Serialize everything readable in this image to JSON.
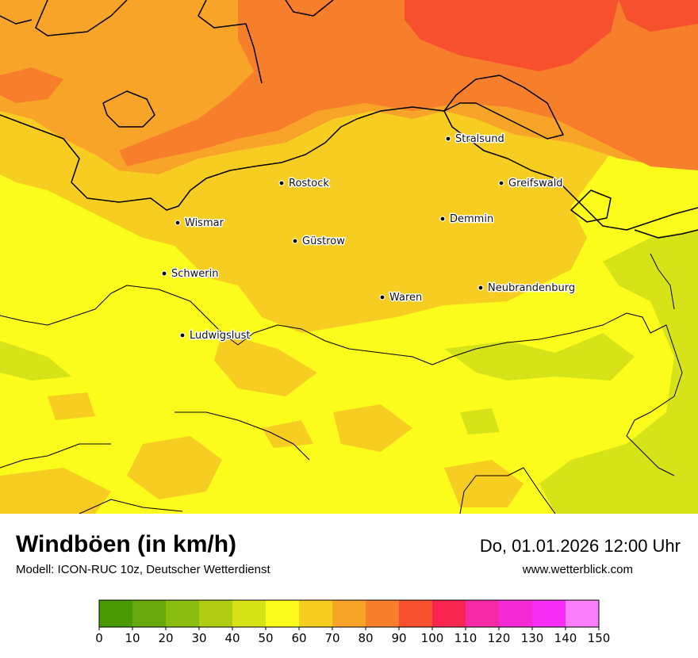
{
  "map": {
    "cities": [
      {
        "name": "Stralsund"
      },
      {
        "name": "Rostock"
      },
      {
        "name": "Greifswald"
      },
      {
        "name": "Wismar"
      },
      {
        "name": "Demmin"
      },
      {
        "name": "Güstrow"
      },
      {
        "name": "Schwerin"
      },
      {
        "name": "Neubrandenburg"
      },
      {
        "name": "Waren"
      },
      {
        "name": "Ludwigslust"
      }
    ]
  },
  "footer": {
    "title": "Windböen (in km/h)",
    "subtitle": "Modell: ICON-RUC 10z, Deutscher Wetterdienst",
    "datetime": "Do, 01.01.2026 12:00 Uhr",
    "website": "www.wetterblick.com"
  },
  "legend": {
    "unit": "km/h",
    "ticks": [
      "0",
      "10",
      "20",
      "30",
      "40",
      "50",
      "60",
      "70",
      "80",
      "90",
      "100",
      "110",
      "120",
      "130",
      "140",
      "150"
    ],
    "colors": [
      "#4a9a06",
      "#67a80c",
      "#8bbd10",
      "#b0cd14",
      "#d6e318",
      "#fbfb1c",
      "#f8cd22",
      "#f7a428",
      "#f77f2c",
      "#f7502f",
      "#f72550",
      "#f529a6",
      "#f52ad4",
      "#f52df5",
      "#f97ef9"
    ]
  }
}
